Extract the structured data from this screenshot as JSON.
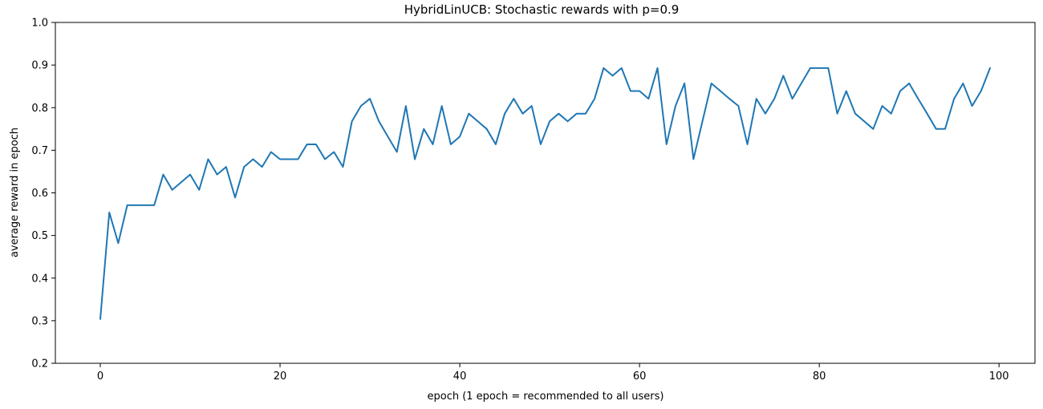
{
  "chart_data": {
    "type": "line",
    "title": "HybridLinUCB: Stochastic rewards with p=0.9",
    "xlabel": "epoch (1 epoch = recommended to all users)",
    "ylabel": "average reward in epoch",
    "xlim": [
      -5,
      104
    ],
    "ylim": [
      0.2,
      1.0
    ],
    "xticks": [
      0,
      20,
      40,
      60,
      80,
      100
    ],
    "yticks": [
      0.2,
      0.3,
      0.4,
      0.5,
      0.6,
      0.7,
      0.8,
      0.9,
      1.0
    ],
    "xtick_labels": [
      "0",
      "20",
      "40",
      "60",
      "80",
      "100"
    ],
    "ytick_labels": [
      "0.2",
      "0.3",
      "0.4",
      "0.5",
      "0.6",
      "0.7",
      "0.8",
      "0.9",
      "1.0"
    ],
    "grid": false,
    "series": [
      {
        "color": "#1f77b4",
        "x": [
          0,
          1,
          2,
          3,
          4,
          5,
          6,
          7,
          8,
          9,
          10,
          11,
          12,
          13,
          14,
          15,
          16,
          17,
          18,
          19,
          20,
          21,
          22,
          23,
          24,
          25,
          26,
          27,
          28,
          29,
          30,
          31,
          32,
          33,
          34,
          35,
          36,
          37,
          38,
          39,
          40,
          41,
          42,
          43,
          44,
          45,
          46,
          47,
          48,
          49,
          50,
          51,
          52,
          53,
          54,
          55,
          56,
          57,
          58,
          59,
          60,
          61,
          62,
          63,
          64,
          65,
          66,
          67,
          68,
          69,
          70,
          71,
          72,
          73,
          74,
          75,
          76,
          77,
          78,
          79,
          80,
          81,
          82,
          83,
          84,
          85,
          86,
          87,
          88,
          89,
          90,
          91,
          92,
          93,
          94,
          95,
          96,
          97,
          98,
          99
        ],
        "y": [
          0.304,
          0.554,
          0.482,
          0.571,
          0.571,
          0.571,
          0.571,
          0.643,
          0.607,
          0.625,
          0.643,
          0.607,
          0.679,
          0.643,
          0.661,
          0.589,
          0.661,
          0.679,
          0.661,
          0.696,
          0.679,
          0.679,
          0.679,
          0.714,
          0.714,
          0.679,
          0.696,
          0.661,
          0.768,
          0.804,
          0.821,
          0.768,
          0.732,
          0.696,
          0.804,
          0.679,
          0.75,
          0.714,
          0.804,
          0.714,
          0.732,
          0.786,
          0.768,
          0.75,
          0.714,
          0.786,
          0.821,
          0.786,
          0.804,
          0.714,
          0.768,
          0.786,
          0.768,
          0.786,
          0.786,
          0.821,
          0.893,
          0.875,
          0.893,
          0.839,
          0.839,
          0.821,
          0.893,
          0.714,
          0.804,
          0.857,
          0.679,
          0.768,
          0.857,
          0.839,
          0.821,
          0.804,
          0.714,
          0.821,
          0.786,
          0.821,
          0.875,
          0.821,
          0.857,
          0.893,
          0.893,
          0.893,
          0.786,
          0.839,
          0.786,
          0.768,
          0.75,
          0.804,
          0.786,
          0.839,
          0.857,
          0.821,
          0.786,
          0.75,
          0.75,
          0.821,
          0.857,
          0.804,
          0.839,
          0.893
        ]
      }
    ]
  }
}
